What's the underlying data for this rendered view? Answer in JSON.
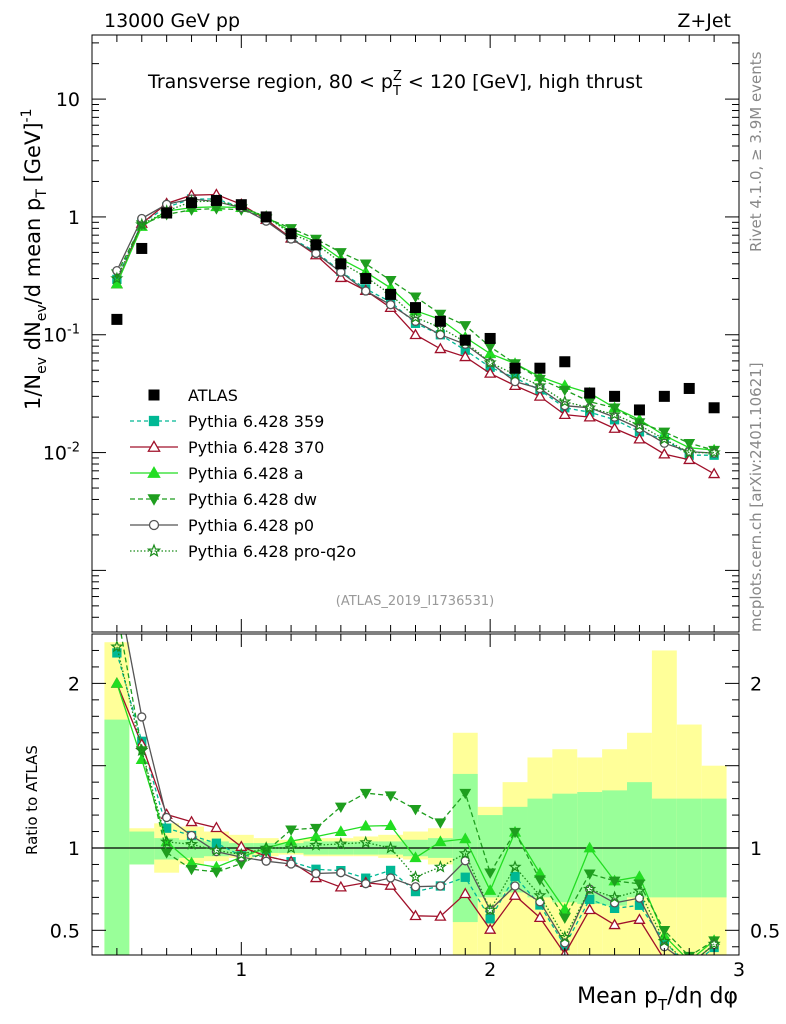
{
  "header": {
    "energy": "13000 GeV pp",
    "process": "Z+Jet"
  },
  "side": {
    "rivet": "Rivet 4.1.0, ≥ 3.9M events",
    "mcplots": "mcplots.cern.ch [arXiv:2401.10621]"
  },
  "chart_data": {
    "type": "line",
    "title": "Transverse region, 80 < p_T^Z < 120 [GeV], high thrust",
    "title_parts": {
      "pre": "Transverse region, 80 < p",
      "sup": "Z",
      "sub": "T",
      "post": " < 120 [GeV], high thrust"
    },
    "analysis_id": "(ATLAS_2019_I1736531)",
    "xlabel": "Mean p_T/dη dφ",
    "xlabel_parts": {
      "pre": "Mean p",
      "sub": "T",
      "post": "/dη dφ"
    },
    "ylabel": "1/N_ev dN_ev/d mean p_T [GeV]^-1",
    "ylabel_parts": {
      "a": "1/N",
      "a_sub": "ev",
      "b": " dN",
      "b_sub": "ev",
      "c": "/d mean p",
      "c_sub": "T",
      "d": " [GeV]",
      "d_sup": "-1"
    },
    "ratio_ylabel": "Ratio to ATLAS",
    "xlim": [
      0.4,
      3.0
    ],
    "ylim": [
      0.0003,
      35
    ],
    "yscale": "log",
    "ratio_ylim": [
      0.35,
      2.3
    ],
    "x_ticks": [
      {
        "v": 1,
        "label": "1"
      },
      {
        "v": 2,
        "label": "2"
      },
      {
        "v": 3,
        "label": "3"
      }
    ],
    "y_ticks": [
      {
        "v": 0.01,
        "base": "10",
        "exp": "-2"
      },
      {
        "v": 0.1,
        "base": "10",
        "exp": "-1"
      },
      {
        "v": 1,
        "base": "1",
        "exp": ""
      },
      {
        "v": 10,
        "base": "10",
        "exp": ""
      }
    ],
    "ratio_ticks": [
      {
        "v": 0.5,
        "label": "0.5"
      },
      {
        "v": 1,
        "label": "1"
      },
      {
        "v": 2,
        "label": "2"
      }
    ],
    "x": [
      0.5,
      0.6,
      0.7,
      0.8,
      0.9,
      1.0,
      1.1,
      1.2,
      1.3,
      1.4,
      1.5,
      1.6,
      1.7,
      1.8,
      1.9,
      2.0,
      2.1,
      2.2,
      2.3,
      2.4,
      2.5,
      2.6,
      2.7,
      2.8,
      2.9
    ],
    "data": {
      "name": "ATLAS",
      "values": [
        0.135,
        0.54,
        1.08,
        1.32,
        1.38,
        1.27,
        1.0,
        0.72,
        0.58,
        0.4,
        0.3,
        0.22,
        0.17,
        0.13,
        0.09,
        0.093,
        0.052,
        0.052,
        0.059,
        0.032,
        0.03,
        0.023,
        0.03,
        0.035,
        0.024
      ]
    },
    "series": [
      {
        "name": "Pythia 6.428 359",
        "color": "#00b894",
        "dash": "4,3",
        "marker": "square",
        "filled": true,
        "values": [
          0.295,
          0.89,
          1.21,
          1.42,
          1.42,
          1.21,
          0.95,
          0.66,
          0.505,
          0.345,
          0.245,
          0.19,
          0.125,
          0.1,
          0.074,
          0.053,
          0.043,
          0.034,
          0.024,
          0.022,
          0.019,
          0.015,
          0.013,
          0.0095,
          0.0095
        ]
      },
      {
        "name": "Pythia 6.428 370",
        "color": "#a0102a",
        "dash": "",
        "marker": "triangle",
        "filled": false,
        "values": [
          0.27,
          0.88,
          1.3,
          1.53,
          1.55,
          1.28,
          0.95,
          0.66,
          0.475,
          0.305,
          0.237,
          0.17,
          0.1,
          0.076,
          0.065,
          0.047,
          0.037,
          0.03,
          0.021,
          0.02,
          0.016,
          0.013,
          0.0097,
          0.0087,
          0.0066
        ]
      },
      {
        "name": "Pythia 6.428 a",
        "color": "#22dd22",
        "dash": "",
        "marker": "triangle",
        "filled": true,
        "values": [
          0.27,
          0.83,
          1.12,
          1.2,
          1.22,
          1.2,
          1.0,
          0.75,
          0.62,
          0.44,
          0.34,
          0.25,
          0.16,
          0.135,
          0.095,
          0.069,
          0.057,
          0.044,
          0.037,
          0.032,
          0.024,
          0.019,
          0.014,
          0.011,
          0.0105
        ]
      },
      {
        "name": "Pythia 6.428 dw",
        "color": "#1f9e1f",
        "dash": "5,3",
        "marker": "triangledown",
        "filled": true,
        "values": [
          0.33,
          0.86,
          1.05,
          1.15,
          1.18,
          1.15,
          0.98,
          0.8,
          0.65,
          0.5,
          0.4,
          0.29,
          0.21,
          0.15,
          0.12,
          0.079,
          0.057,
          0.042,
          0.034,
          0.027,
          0.024,
          0.018,
          0.015,
          0.012,
          0.0105
        ]
      },
      {
        "name": "Pythia 6.428 p0",
        "color": "#555555",
        "dash": "",
        "marker": "circle",
        "filled": false,
        "values": [
          0.35,
          0.97,
          1.28,
          1.42,
          1.35,
          1.2,
          0.92,
          0.65,
          0.49,
          0.34,
          0.235,
          0.18,
          0.13,
          0.1,
          0.083,
          0.058,
          0.04,
          0.035,
          0.025,
          0.024,
          0.02,
          0.016,
          0.012,
          0.0102,
          0.0099
        ]
      },
      {
        "name": "Pythia 6.428 pro-q2o",
        "color": "#1a8c1a",
        "dash": "1.5,2",
        "marker": "star",
        "filled": false,
        "values": [
          0.3,
          0.86,
          1.12,
          1.35,
          1.36,
          1.22,
          1.0,
          0.72,
          0.59,
          0.41,
          0.31,
          0.22,
          0.14,
          0.115,
          0.087,
          0.058,
          0.046,
          0.037,
          0.027,
          0.024,
          0.021,
          0.017,
          0.013,
          0.01,
          0.01
        ]
      }
    ],
    "bands": {
      "x_edges": [
        0.45,
        0.55,
        0.65,
        0.75,
        0.85,
        0.95,
        1.05,
        1.15,
        1.25,
        1.35,
        1.45,
        1.55,
        1.65,
        1.75,
        1.85,
        1.95,
        2.05,
        2.15,
        2.25,
        2.35,
        2.45,
        2.55,
        2.65,
        2.75,
        2.85,
        2.95
      ],
      "inner_lo": [
        0.35,
        0.9,
        0.93,
        0.94,
        0.95,
        0.96,
        0.97,
        0.97,
        0.96,
        0.96,
        0.96,
        0.96,
        0.95,
        0.94,
        0.55,
        0.7,
        0.73,
        0.7,
        0.67,
        0.66,
        0.65,
        0.7,
        0.7,
        0.7,
        0.7
      ],
      "inner_hi": [
        1.78,
        1.1,
        1.06,
        1.05,
        1.04,
        1.03,
        1.03,
        1.03,
        1.04,
        1.04,
        1.04,
        1.04,
        1.05,
        1.06,
        1.45,
        1.2,
        1.25,
        1.3,
        1.33,
        1.34,
        1.35,
        1.4,
        1.3,
        1.3,
        1.3
      ],
      "outer_lo": [
        0.35,
        0.9,
        0.85,
        0.9,
        0.92,
        0.94,
        0.95,
        0.96,
        0.95,
        0.95,
        0.95,
        0.94,
        0.93,
        0.9,
        0.35,
        0.35,
        0.35,
        0.35,
        0.35,
        0.35,
        0.35,
        0.35,
        0.35,
        0.35,
        0.35
      ],
      "outer_hi": [
        2.25,
        1.12,
        1.15,
        1.13,
        1.1,
        1.08,
        1.06,
        1.05,
        1.06,
        1.06,
        1.07,
        1.08,
        1.1,
        1.12,
        1.7,
        1.25,
        1.4,
        1.55,
        1.6,
        1.55,
        1.6,
        1.7,
        2.2,
        1.75,
        1.5
      ]
    }
  }
}
